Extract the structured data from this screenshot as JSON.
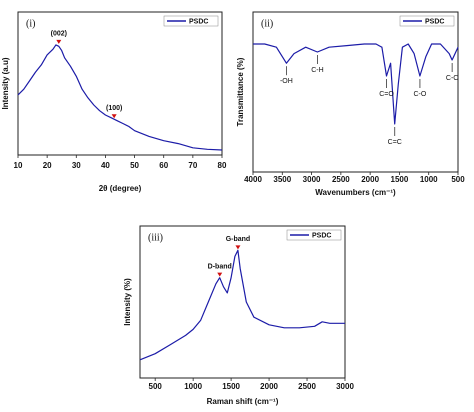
{
  "chart_data": [
    {
      "type": "line",
      "panel_label": "(i)",
      "xlabel": "2θ (degree)",
      "ylabel": "Intensity (a.u)",
      "xlim": [
        10,
        80
      ],
      "xticks": [
        10,
        20,
        30,
        40,
        50,
        60,
        70,
        80
      ],
      "ylim": [
        0,
        100
      ],
      "legend": "upper right",
      "x": [
        10,
        12,
        14,
        16,
        18,
        20,
        22,
        23,
        24,
        25,
        26,
        28,
        30,
        32,
        34,
        36,
        38,
        40,
        42,
        44,
        46,
        48,
        50,
        55,
        60,
        65,
        70,
        75,
        80
      ],
      "series": [
        {
          "name": "PSDC",
          "color": "#1c1ca8",
          "values": [
            42,
            46,
            52,
            58,
            63,
            70,
            74,
            77,
            76,
            73,
            68,
            62,
            55,
            46,
            40,
            35,
            31,
            28,
            26,
            24,
            22,
            20,
            17,
            13,
            10,
            8,
            5,
            4,
            3.5
          ]
        }
      ],
      "annotations": [
        {
          "text": "(002)",
          "x": 24,
          "y": 77
        },
        {
          "text": "(100)",
          "x": 43,
          "y": 25
        }
      ]
    },
    {
      "type": "line",
      "panel_label": "(ii)",
      "xlabel": "Wavenumbers (cm⁻¹)",
      "ylabel": "Transmittance (%)",
      "xlim": [
        4000,
        500
      ],
      "xticks": [
        4000,
        3500,
        3000,
        2500,
        2000,
        1500,
        1000,
        500
      ],
      "ylim": [
        0,
        100
      ],
      "legend": "upper right",
      "x": [
        4000,
        3800,
        3600,
        3430,
        3300,
        3100,
        2900,
        2700,
        2400,
        2100,
        1900,
        1800,
        1720,
        1650,
        1580,
        1520,
        1450,
        1350,
        1250,
        1150,
        1050,
        950,
        800,
        650,
        600,
        500
      ],
      "series": [
        {
          "name": "PSDC",
          "color": "#1c1ca8",
          "values": [
            80,
            80,
            78,
            68,
            74,
            78,
            75,
            78,
            79,
            80,
            80,
            78,
            60,
            68,
            30,
            55,
            78,
            80,
            74,
            60,
            72,
            80,
            80,
            74,
            70,
            78
          ]
        }
      ],
      "annotations": [
        {
          "text": "-OH",
          "x": 3430,
          "y": 68
        },
        {
          "text": "C-H",
          "x": 2900,
          "y": 75
        },
        {
          "text": "C=O",
          "x": 1720,
          "y": 60
        },
        {
          "text": "C=C",
          "x": 1580,
          "y": 30
        },
        {
          "text": "C-O",
          "x": 1150,
          "y": 60
        },
        {
          "text": "C-C",
          "x": 600,
          "y": 70
        }
      ]
    },
    {
      "type": "line",
      "panel_label": "(iii)",
      "xlabel": "Raman shift (cm⁻¹)",
      "ylabel": "Intensity (%)",
      "xlim": [
        300,
        3000
      ],
      "xticks": [
        500,
        1000,
        1500,
        2000,
        2500,
        3000
      ],
      "ylim": [
        0,
        100
      ],
      "legend": "upper right",
      "x": [
        300,
        500,
        700,
        900,
        1000,
        1100,
        1200,
        1300,
        1350,
        1400,
        1450,
        1500,
        1550,
        1590,
        1620,
        1700,
        1800,
        2000,
        2200,
        2400,
        2600,
        2700,
        2800,
        3000
      ],
      "series": [
        {
          "name": "PSDC",
          "color": "#1c1ca8",
          "values": [
            12,
            16,
            22,
            28,
            32,
            38,
            50,
            62,
            66,
            60,
            56,
            66,
            80,
            84,
            72,
            50,
            40,
            35,
            33,
            33,
            34,
            37,
            36,
            36
          ]
        }
      ],
      "annotations": [
        {
          "text": "D-band",
          "x": 1350,
          "y": 66
        },
        {
          "text": "G-band",
          "x": 1590,
          "y": 84
        }
      ]
    }
  ]
}
